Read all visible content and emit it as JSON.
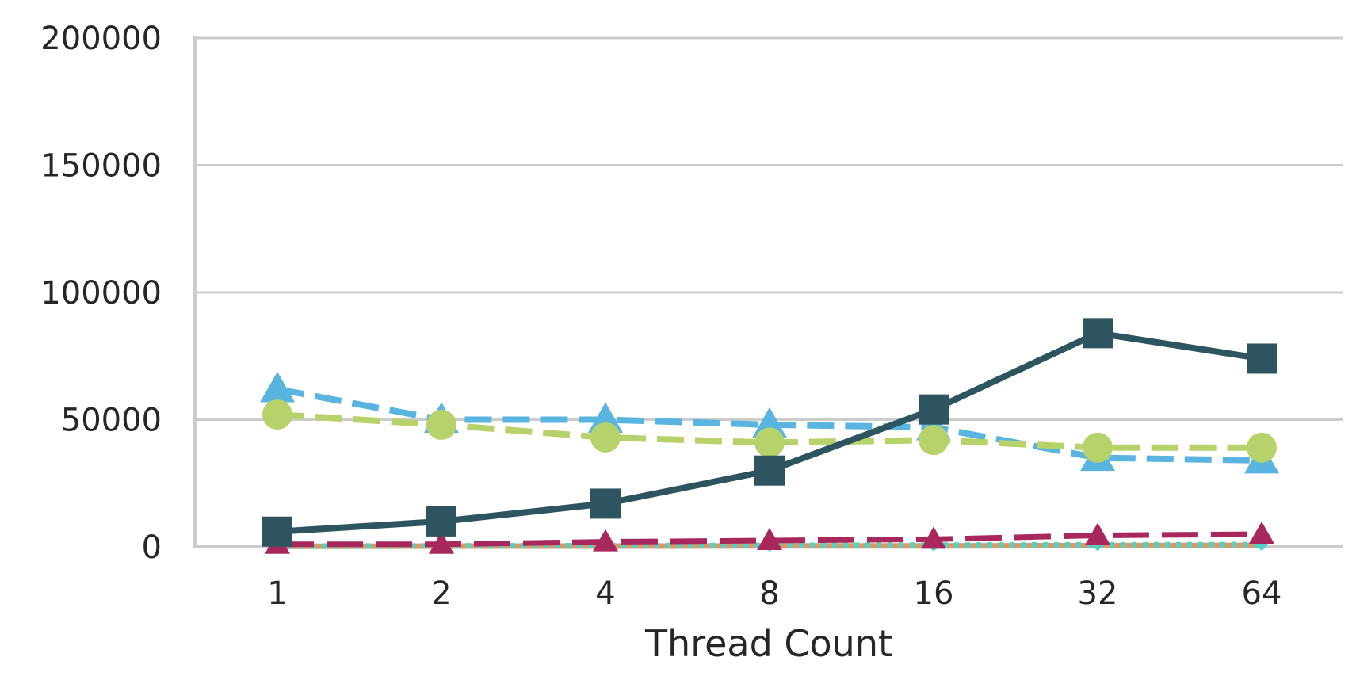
{
  "chart_data": {
    "type": "line",
    "title": "",
    "xlabel": "Thread Count",
    "ylabel": "",
    "categories": [
      "1",
      "2",
      "4",
      "8",
      "16",
      "32",
      "64"
    ],
    "ylim": [
      0,
      200000
    ],
    "yticks": [
      "0",
      "50000",
      "100000",
      "150000",
      "200000"
    ],
    "grid": "horizontal",
    "legend": "none",
    "series": [
      {
        "color": "#2e5460",
        "dash": "solid",
        "marker": "square",
        "values": [
          6000,
          10000,
          17000,
          30000,
          54000,
          84000,
          74000
        ]
      },
      {
        "color": "#5ab4e0",
        "dash": "dashed",
        "marker": "triangle",
        "values": [
          62000,
          50000,
          50000,
          48000,
          47000,
          35000,
          34000
        ]
      },
      {
        "color": "#b7d26a",
        "dash": "dashed",
        "marker": "circle",
        "values": [
          52000,
          48000,
          43000,
          41000,
          42000,
          39000,
          39000
        ]
      },
      {
        "color": "#a8285e",
        "dash": "longdash",
        "marker": "triangle",
        "values": [
          1000,
          1000,
          2000,
          2500,
          3000,
          4500,
          5000
        ]
      },
      {
        "color": "#4fd3c4",
        "dash": "dotted",
        "marker": "diamond",
        "values": [
          300,
          400,
          500,
          600,
          700,
          800,
          900
        ]
      },
      {
        "color": "#d89a6a",
        "dash": "solid",
        "marker": "bar",
        "values": [
          200,
          300,
          300,
          400,
          400,
          500,
          600
        ]
      }
    ]
  }
}
